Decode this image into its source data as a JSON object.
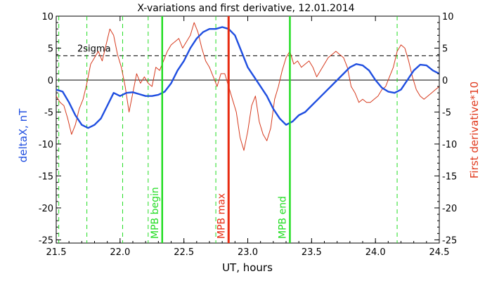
{
  "chart_data": {
    "type": "line",
    "title": "X-variations and first derivative, 12.01.2014",
    "xlabel": "UT, hours",
    "ylabel_left": "deltaX, nT",
    "ylabel_right": "First derivative*10",
    "xlim": [
      21.5,
      24.5
    ],
    "ylim": [
      -25.5,
      10
    ],
    "x_ticks": [
      "21.5",
      "22.0",
      "22.5",
      "23.0",
      "23.5",
      "24.0",
      "24.5"
    ],
    "y_ticks": [
      "10",
      "5",
      "0",
      "-5",
      "-10",
      "-15",
      "-20",
      "-25"
    ],
    "y_tick_values": [
      10,
      5,
      0,
      -5,
      -10,
      -15,
      -20,
      -25
    ],
    "x_tick_values": [
      21.5,
      22.0,
      22.5,
      23.0,
      23.5,
      24.0,
      24.5
    ],
    "colors": {
      "deltaX": "#1f4ee0",
      "derivative": "#d63a1e",
      "mpb": "#22dd22",
      "mpb_max": "#e82a10",
      "ylabel_left": "#1f4ee0",
      "ylabel_right": "#e03a1e"
    },
    "threshold": {
      "label": "2sigma",
      "value": 3.8,
      "style": "dashed"
    },
    "zero_line": 0,
    "mpb_begin": {
      "x": 22.33,
      "label": "MPB begin"
    },
    "mpb_max": {
      "x": 22.85,
      "label": "MPB max"
    },
    "mpb_end": {
      "x": 23.33,
      "label": "MPB end"
    },
    "green_dashed_lines": [
      21.52,
      21.74,
      22.02,
      22.22,
      22.75,
      24.17
    ],
    "series": [
      {
        "name": "deltaX",
        "x": [
          21.5,
          21.55,
          21.6,
          21.65,
          21.7,
          21.75,
          21.8,
          21.85,
          21.9,
          21.95,
          22.0,
          22.05,
          22.1,
          22.15,
          22.2,
          22.25,
          22.3,
          22.35,
          22.4,
          22.45,
          22.5,
          22.55,
          22.6,
          22.65,
          22.7,
          22.75,
          22.8,
          22.85,
          22.9,
          22.95,
          23.0,
          23.05,
          23.1,
          23.15,
          23.2,
          23.25,
          23.3,
          23.35,
          23.4,
          23.45,
          23.5,
          23.55,
          23.6,
          23.65,
          23.7,
          23.75,
          23.8,
          23.85,
          23.9,
          23.95,
          24.0,
          24.05,
          24.1,
          24.15,
          24.2,
          24.25,
          24.3,
          24.35,
          24.4,
          24.45,
          24.5
        ],
        "y": [
          -1.5,
          -1.8,
          -3.5,
          -5.5,
          -7.0,
          -7.5,
          -7.0,
          -6.0,
          -4.0,
          -2.0,
          -2.5,
          -2.0,
          -1.9,
          -2.2,
          -2.5,
          -2.5,
          -2.3,
          -1.8,
          -0.5,
          1.5,
          3.0,
          5.0,
          6.5,
          7.5,
          8.0,
          8.0,
          8.3,
          8.0,
          7.0,
          4.5,
          2.0,
          0.5,
          -1.0,
          -2.5,
          -4.5,
          -6.0,
          -7.0,
          -6.5,
          -5.5,
          -5.0,
          -4.0,
          -3.0,
          -2.0,
          -1.0,
          0.0,
          1.0,
          2.0,
          2.5,
          2.3,
          1.5,
          0.0,
          -1.2,
          -1.8,
          -2.0,
          -1.5,
          0.0,
          1.5,
          2.4,
          2.3,
          1.5,
          1.0
        ]
      },
      {
        "name": "derivative",
        "x": [
          21.5,
          21.53,
          21.56,
          21.59,
          21.62,
          21.65,
          21.68,
          21.71,
          21.74,
          21.77,
          21.8,
          21.83,
          21.86,
          21.89,
          21.92,
          21.95,
          21.98,
          22.01,
          22.04,
          22.07,
          22.1,
          22.13,
          22.16,
          22.19,
          22.22,
          22.25,
          22.28,
          22.31,
          22.34,
          22.37,
          22.4,
          22.43,
          22.46,
          22.49,
          22.52,
          22.55,
          22.58,
          22.61,
          22.64,
          22.67,
          22.7,
          22.73,
          22.76,
          22.79,
          22.82,
          22.85,
          22.88,
          22.91,
          22.94,
          22.97,
          23.0,
          23.03,
          23.06,
          23.09,
          23.12,
          23.15,
          23.18,
          23.21,
          23.24,
          23.27,
          23.3,
          23.33,
          23.36,
          23.39,
          23.42,
          23.45,
          23.48,
          23.51,
          23.54,
          23.57,
          23.6,
          23.63,
          23.66,
          23.69,
          23.72,
          23.75,
          23.78,
          23.81,
          23.84,
          23.87,
          23.9,
          23.93,
          23.96,
          23.99,
          24.02,
          24.05,
          24.08,
          24.11,
          24.14,
          24.17,
          24.2,
          24.23,
          24.26,
          24.29,
          24.32,
          24.35,
          24.38,
          24.41,
          24.44,
          24.47,
          24.5
        ],
        "y": [
          -2.5,
          -3.5,
          -4.0,
          -6.0,
          -8.5,
          -7.0,
          -4.5,
          -3.0,
          -0.5,
          2.5,
          3.5,
          4.5,
          3.0,
          5.5,
          8.0,
          7.0,
          4.0,
          2.0,
          -1.0,
          -5.0,
          -2.0,
          1.0,
          -0.5,
          0.5,
          -0.5,
          -1.0,
          2.0,
          1.5,
          3.0,
          4.5,
          5.5,
          6.0,
          6.5,
          5.0,
          6.0,
          7.0,
          9.0,
          7.5,
          5.0,
          3.0,
          2.0,
          0.5,
          -1.0,
          1.0,
          1.0,
          -1.0,
          -3.0,
          -5.0,
          -9.0,
          -11.0,
          -8.0,
          -4.0,
          -2.5,
          -6.5,
          -8.5,
          -9.5,
          -7.5,
          -3.0,
          -1.0,
          1.5,
          3.5,
          4.5,
          2.5,
          3.0,
          2.0,
          2.5,
          3.0,
          2.0,
          0.5,
          1.5,
          2.5,
          3.5,
          4.0,
          4.5,
          4.0,
          3.5,
          2.0,
          -1.0,
          -2.0,
          -3.5,
          -3.0,
          -3.5,
          -3.5,
          -3.0,
          -2.5,
          -1.5,
          -1.0,
          0.5,
          2.0,
          4.5,
          5.5,
          5.0,
          3.0,
          0.5,
          -1.5,
          -2.5,
          -3.0,
          -2.5,
          -2.0,
          -1.5,
          -1.0
        ]
      }
    ]
  }
}
